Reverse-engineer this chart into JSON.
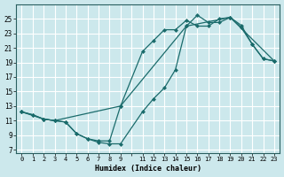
{
  "xlabel": "Humidex (Indice chaleur)",
  "bg_color": "#cce8ec",
  "grid_color": "#ffffff",
  "line_color": "#1a6b6b",
  "xlim": [
    -0.5,
    23.5
  ],
  "ylim": [
    6.5,
    27
  ],
  "yticks": [
    7,
    9,
    11,
    13,
    15,
    17,
    19,
    21,
    23,
    25
  ],
  "xtick_vals": [
    0,
    1,
    2,
    3,
    4,
    5,
    6,
    7,
    8,
    9,
    10,
    11,
    12,
    13,
    14,
    15,
    16,
    17,
    18,
    19,
    20,
    21,
    22,
    23
  ],
  "xtick_labels": [
    "0",
    "1",
    "2",
    "3",
    "4",
    "5",
    "6",
    "7",
    "8",
    "9",
    "",
    "11",
    "12",
    "13",
    "14",
    "15",
    "16",
    "17",
    "18",
    "19",
    "20",
    "21",
    "22",
    "23"
  ],
  "line1_x": [
    0,
    1,
    2,
    3,
    4,
    5,
    6,
    7,
    8,
    9,
    11,
    12,
    13,
    14,
    15,
    16,
    17,
    18,
    19,
    20,
    21,
    22,
    23
  ],
  "line1_y": [
    12.2,
    11.8,
    11.2,
    11.0,
    10.8,
    9.2,
    8.5,
    8.0,
    7.8,
    7.8,
    12.2,
    14.0,
    15.5,
    18.0,
    24.0,
    25.5,
    24.5,
    24.5,
    25.2,
    23.8,
    21.5,
    19.5,
    19.2
  ],
  "line2_x": [
    0,
    1,
    2,
    3,
    4,
    5,
    6,
    7,
    8,
    9,
    11,
    12,
    13,
    14,
    15,
    16,
    17,
    18,
    19,
    20,
    21,
    22,
    23
  ],
  "line2_y": [
    12.2,
    11.8,
    11.2,
    11.0,
    10.8,
    9.2,
    8.5,
    8.2,
    8.2,
    13.0,
    20.5,
    22.0,
    23.5,
    23.5,
    24.8,
    24.0,
    24.0,
    25.0,
    25.2,
    24.1,
    21.5,
    19.5,
    19.2
  ],
  "line3_x": [
    0,
    2,
    3,
    9,
    15,
    19,
    23
  ],
  "line3_y": [
    12.2,
    11.2,
    11.0,
    13.0,
    24.0,
    25.2,
    19.2
  ]
}
